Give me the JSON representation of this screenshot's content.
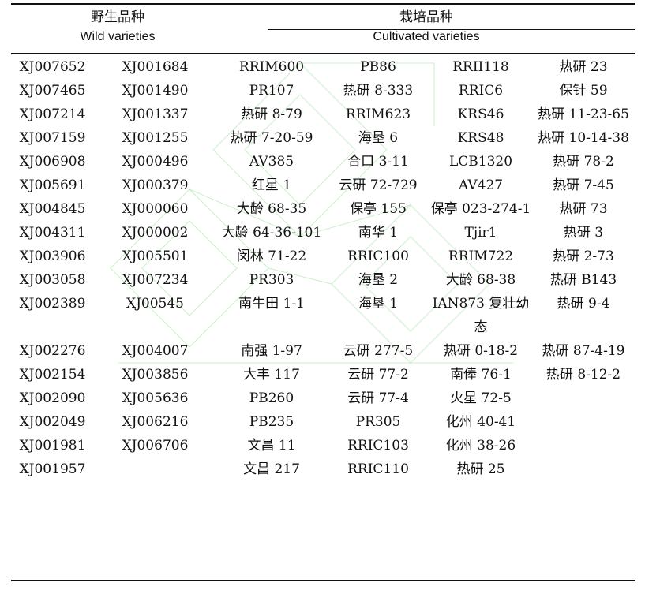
{
  "header": {
    "wild_zh": "野生品种",
    "wild_en": "Wild varieties",
    "cultivated_zh": "栽培品种",
    "cultivated_en": "Cultivated varieties"
  },
  "rows": [
    [
      "XJ007652",
      "XJ001684",
      "RRIM600",
      "PB86",
      "RRII118",
      "热研 23"
    ],
    [
      "XJ007465",
      "XJ001490",
      "PR107",
      "热研 8-333",
      "RRIC6",
      "保针 59"
    ],
    [
      "XJ007214",
      "XJ001337",
      "热研 8-79",
      "RRIM623",
      "KRS46",
      "热研 11-23-65"
    ],
    [
      "XJ007159",
      "XJ001255",
      "热研 7-20-59",
      "海垦 6",
      "KRS48",
      "热研 10-14-38"
    ],
    [
      "XJ006908",
      "XJ000496",
      "AV385",
      "合口 3-11",
      "LCB1320",
      "热研 78-2"
    ],
    [
      "XJ005691",
      "XJ000379",
      "红星 1",
      "云研 72-729",
      "AV427",
      "热研 7-45"
    ],
    [
      "XJ004845",
      "XJ000060",
      "大龄 68-35",
      "保亭 155",
      "保亭 023-274-1",
      "热研 73"
    ],
    [
      "XJ004311",
      "XJ000002",
      "大龄 64-36-101",
      "南华 1",
      "Tjir1",
      "热研 3"
    ],
    [
      "XJ003906",
      "XJ005501",
      "闵林 71-22",
      "RRIC100",
      "RRIM722",
      "热研 2-73"
    ],
    [
      "XJ003058",
      "XJ007234",
      "PR303",
      "海垦 2",
      "大龄 68-38",
      "热研 B143"
    ],
    [
      "XJ002389",
      "XJ00545",
      "南牛田 1-1",
      "海垦 1",
      "IAN873 复壮幼态",
      "热研 9-4"
    ],
    [
      "XJ002276",
      "XJ004007",
      "南强 1-97",
      "云研 277-5",
      "热研 0-18-2",
      "热研 87-4-19"
    ],
    [
      "XJ002154",
      "XJ003856",
      "大丰 117",
      "云研 77-2",
      "南俸 76-1",
      "热研 8-12-2"
    ],
    [
      "XJ002090",
      "XJ005636",
      "PB260",
      "云研 77-4",
      "火星 72-5",
      ""
    ],
    [
      "XJ002049",
      "XJ006216",
      "PB235",
      "PR305",
      "化州 40-41",
      ""
    ],
    [
      "XJ001981",
      "XJ006706",
      "文昌 11",
      "RRIC103",
      "化州 38-26",
      ""
    ],
    [
      "XJ001957",
      "",
      "文昌 217",
      "RRIC110",
      "热研 25",
      ""
    ]
  ]
}
